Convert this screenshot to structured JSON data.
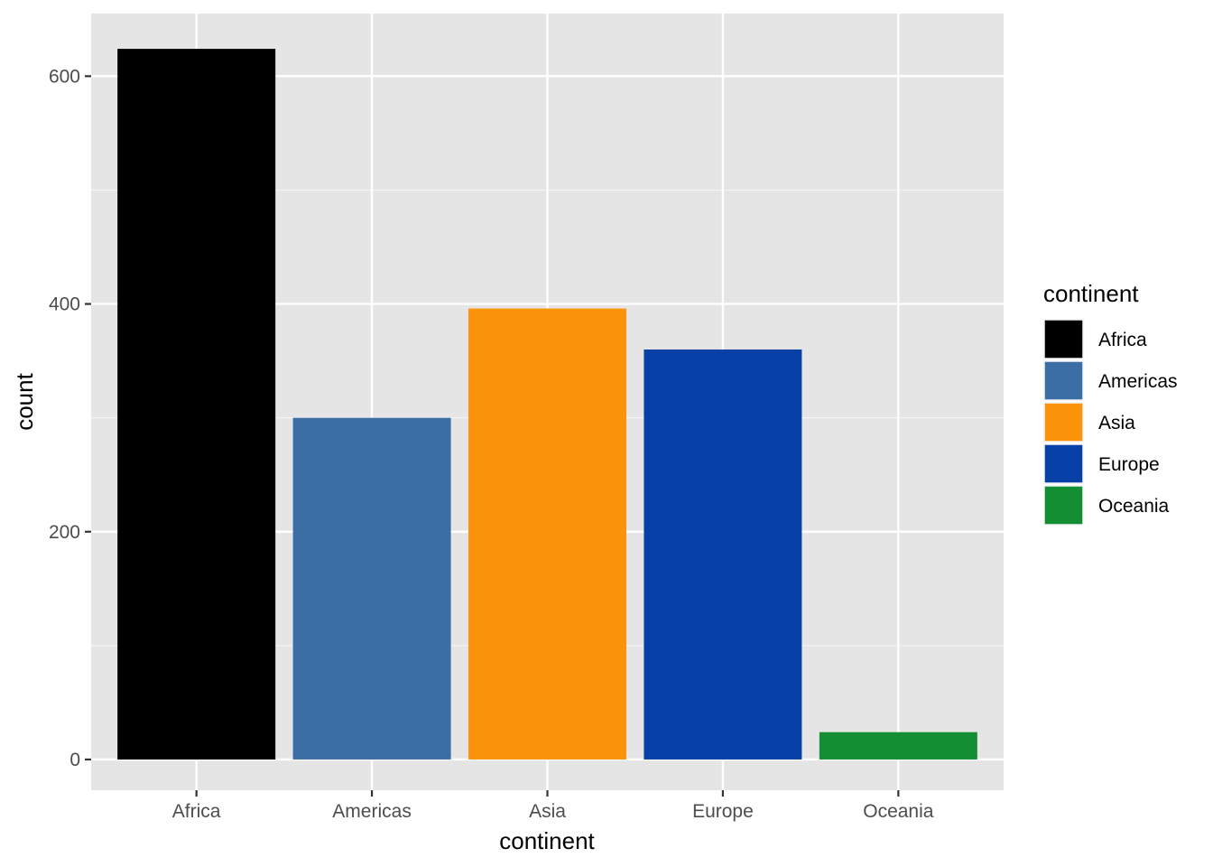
{
  "chart_data": {
    "type": "bar",
    "categories": [
      "Africa",
      "Americas",
      "Asia",
      "Europe",
      "Oceania"
    ],
    "values": [
      624,
      300,
      396,
      360,
      24
    ],
    "colors": [
      "#000000",
      "#3A6EA5",
      "#FB930B",
      "#0741A8",
      "#138E32"
    ],
    "xlabel": "continent",
    "ylabel": "count",
    "ylim": [
      -27,
      655
    ],
    "yticks": [
      0,
      200,
      400,
      600
    ],
    "legend": {
      "title": "continent",
      "position": "right",
      "entries": [
        "Africa",
        "Americas",
        "Asia",
        "Europe",
        "Oceania"
      ]
    },
    "grid": true,
    "panel_background": "#E5E5E5"
  }
}
